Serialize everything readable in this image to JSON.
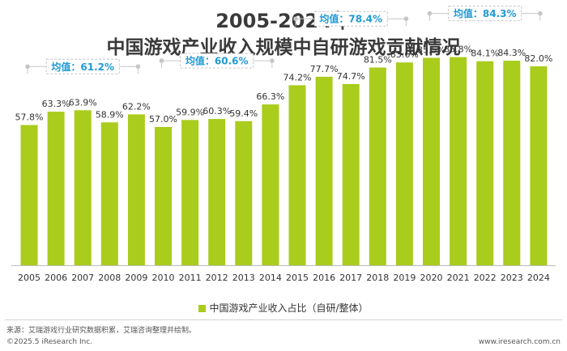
{
  "header": {
    "title_line1": "2005-2024年",
    "title_line2": "中国游戏产业收入规模中自研游戏贡献情况"
  },
  "footer": {
    "source": "来源：艾瑞游戏行业研究数据积累，艾瑞咨询整理并绘制。",
    "copyright": "©2025.5 iResearch Inc.",
    "website": "www.iresearch.com.cn"
  },
  "colors": {
    "bar": "#a9cc1d",
    "average_text": "#1e9ad6",
    "bracket": "#c6c6c6"
  },
  "chart_data": {
    "type": "bar",
    "categories": [
      "2005",
      "2006",
      "2007",
      "2008",
      "2009",
      "2010",
      "2011",
      "2012",
      "2013",
      "2014",
      "2015",
      "2016",
      "2017",
      "2018",
      "2019",
      "2020",
      "2021",
      "2022",
      "2023",
      "2024"
    ],
    "series": [
      {
        "name": "中国游戏产业收入占比（自研/整体）",
        "values": [
          57.8,
          63.3,
          63.9,
          58.9,
          62.2,
          57.0,
          59.9,
          60.3,
          59.4,
          66.3,
          74.2,
          77.7,
          74.7,
          81.5,
          83.6,
          85.5,
          85.8,
          84.1,
          84.3,
          82.0
        ],
        "data_labels": [
          "57.8%",
          "63.3%",
          "63.9%",
          "58.9%",
          "62.2%",
          "57.0%",
          "59.9%",
          "60.3%",
          "59.4%",
          "66.3%",
          "74.2%",
          "77.7%",
          "74.7%",
          "81.5%",
          "83.6%",
          "85.5%",
          "85.8%",
          "84.1%",
          "84.3%",
          "82.0%"
        ]
      }
    ],
    "ylim": [
      0,
      100
    ],
    "legend": "bottom",
    "grid": false,
    "annotations": [
      {
        "label": "均值：61.2%",
        "from": "2005",
        "to": "2009"
      },
      {
        "label": "均值：60.6%",
        "from": "2010",
        "to": "2014"
      },
      {
        "label": "均值：78.4%",
        "from": "2015",
        "to": "2019"
      },
      {
        "label": "均值：84.3%",
        "from": "2020",
        "to": "2024"
      }
    ]
  }
}
